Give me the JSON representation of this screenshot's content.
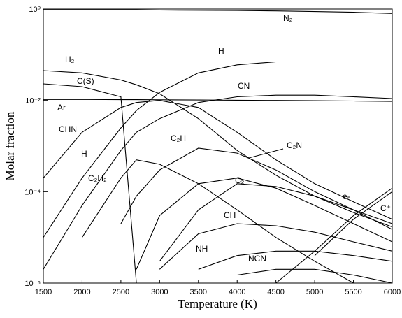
{
  "chart_data": {
    "type": "line",
    "x_label": "Temperature (K)",
    "y_label": "Molar fraction",
    "log_y": true,
    "x": [
      1500,
      2000,
      2500,
      2700,
      3000,
      3500,
      4000,
      4500,
      5000,
      5500,
      6000
    ],
    "xlim": [
      1500,
      6000
    ],
    "xticks": [
      1500,
      2000,
      2500,
      3000,
      3500,
      4000,
      4500,
      5000,
      5500,
      6000
    ],
    "ylim": [
      1e-06,
      1
    ],
    "yticks": [
      {
        "value": 1,
        "label": "10⁰"
      },
      {
        "value": 0.01,
        "label": "10⁻²"
      },
      {
        "value": 0.0001,
        "label": "10⁻⁴"
      },
      {
        "value": 1e-06,
        "label": "10⁻⁶"
      }
    ],
    "annotations": [
      "H"
    ],
    "series": [
      {
        "name": "N₂",
        "color": "#000",
        "values": [
          0.96,
          0.96,
          0.96,
          0.96,
          0.95,
          0.94,
          0.93,
          0.91,
          0.88,
          0.85,
          0.8
        ]
      },
      {
        "name": "H₂",
        "color": "#000",
        "values": [
          0.045,
          0.04,
          0.028,
          0.022,
          0.014,
          0.004,
          0.0008,
          0.00023,
          8e-05,
          3.5e-05,
          1.7e-05
        ]
      },
      {
        "name": "C(S)",
        "color": "#000",
        "values": [
          0.023,
          0.02,
          0.012,
          1e-06,
          null,
          null,
          null,
          null,
          null,
          null,
          null
        ]
      },
      {
        "name": "Ar",
        "color": "#000",
        "values": [
          0.0105,
          0.0105,
          0.0104,
          0.0104,
          0.0103,
          0.0102,
          0.0101,
          0.01,
          0.0099,
          0.0097,
          0.0095
        ]
      },
      {
        "name": "CHN",
        "color": "#000",
        "values": [
          0.0002,
          0.002,
          0.007,
          0.009,
          0.01,
          0.007,
          0.002,
          0.0005,
          0.00015,
          6e-05,
          2.5e-05
        ]
      },
      {
        "name": "H",
        "color": "#000",
        "values": [
          1e-05,
          0.0002,
          0.0025,
          0.006,
          0.015,
          0.04,
          0.06,
          0.07,
          0.07,
          0.07,
          0.07
        ]
      },
      {
        "name": "C₂H₂",
        "color": "#000",
        "values": [
          null,
          1e-05,
          0.0002,
          0.0005,
          0.0004,
          0.00015,
          4e-05,
          1e-05,
          3e-06,
          1e-06,
          null
        ]
      },
      {
        "name": "C₂H",
        "color": "#000",
        "values": [
          null,
          null,
          2e-05,
          8e-05,
          0.0003,
          0.0009,
          0.0007,
          0.0003,
          0.0001,
          4e-05,
          1.5e-05
        ]
      },
      {
        "name": "C₂N",
        "color": "#000",
        "values": [
          null,
          null,
          null,
          2e-06,
          3e-05,
          0.00015,
          0.0002,
          0.00012,
          5e-05,
          2e-05,
          8e-06
        ]
      },
      {
        "name": "CN",
        "color": "#000",
        "values": [
          2e-06,
          5e-05,
          0.0008,
          0.002,
          0.004,
          0.009,
          0.012,
          0.013,
          0.013,
          0.012,
          0.011
        ]
      },
      {
        "name": "C₂",
        "color": "#000",
        "values": [
          null,
          null,
          null,
          null,
          3e-06,
          4e-05,
          0.00015,
          0.00013,
          8e-05,
          4e-05,
          2e-05
        ]
      },
      {
        "name": "CH",
        "color": "#000",
        "values": [
          null,
          null,
          null,
          null,
          2e-06,
          1.2e-05,
          2e-05,
          1.8e-05,
          1.3e-05,
          8e-06,
          5e-06
        ]
      },
      {
        "name": "NH",
        "color": "#000",
        "values": [
          null,
          null,
          null,
          null,
          null,
          2e-06,
          4e-06,
          5e-06,
          5e-06,
          4e-06,
          3e-06
        ]
      },
      {
        "name": "NCN",
        "color": "#000",
        "values": [
          null,
          null,
          null,
          null,
          null,
          null,
          1.5e-06,
          2e-06,
          2e-06,
          1.5e-06,
          1e-06
        ]
      },
      {
        "name": "e-",
        "color": "#000",
        "values": [
          null,
          null,
          null,
          null,
          null,
          null,
          null,
          1e-06,
          5e-06,
          3e-05,
          0.00012
        ]
      },
      {
        "name": "C⁺",
        "color": "#000",
        "values": [
          null,
          null,
          null,
          null,
          null,
          null,
          null,
          null,
          4e-06,
          2.5e-05,
          0.0001
        ]
      }
    ]
  }
}
